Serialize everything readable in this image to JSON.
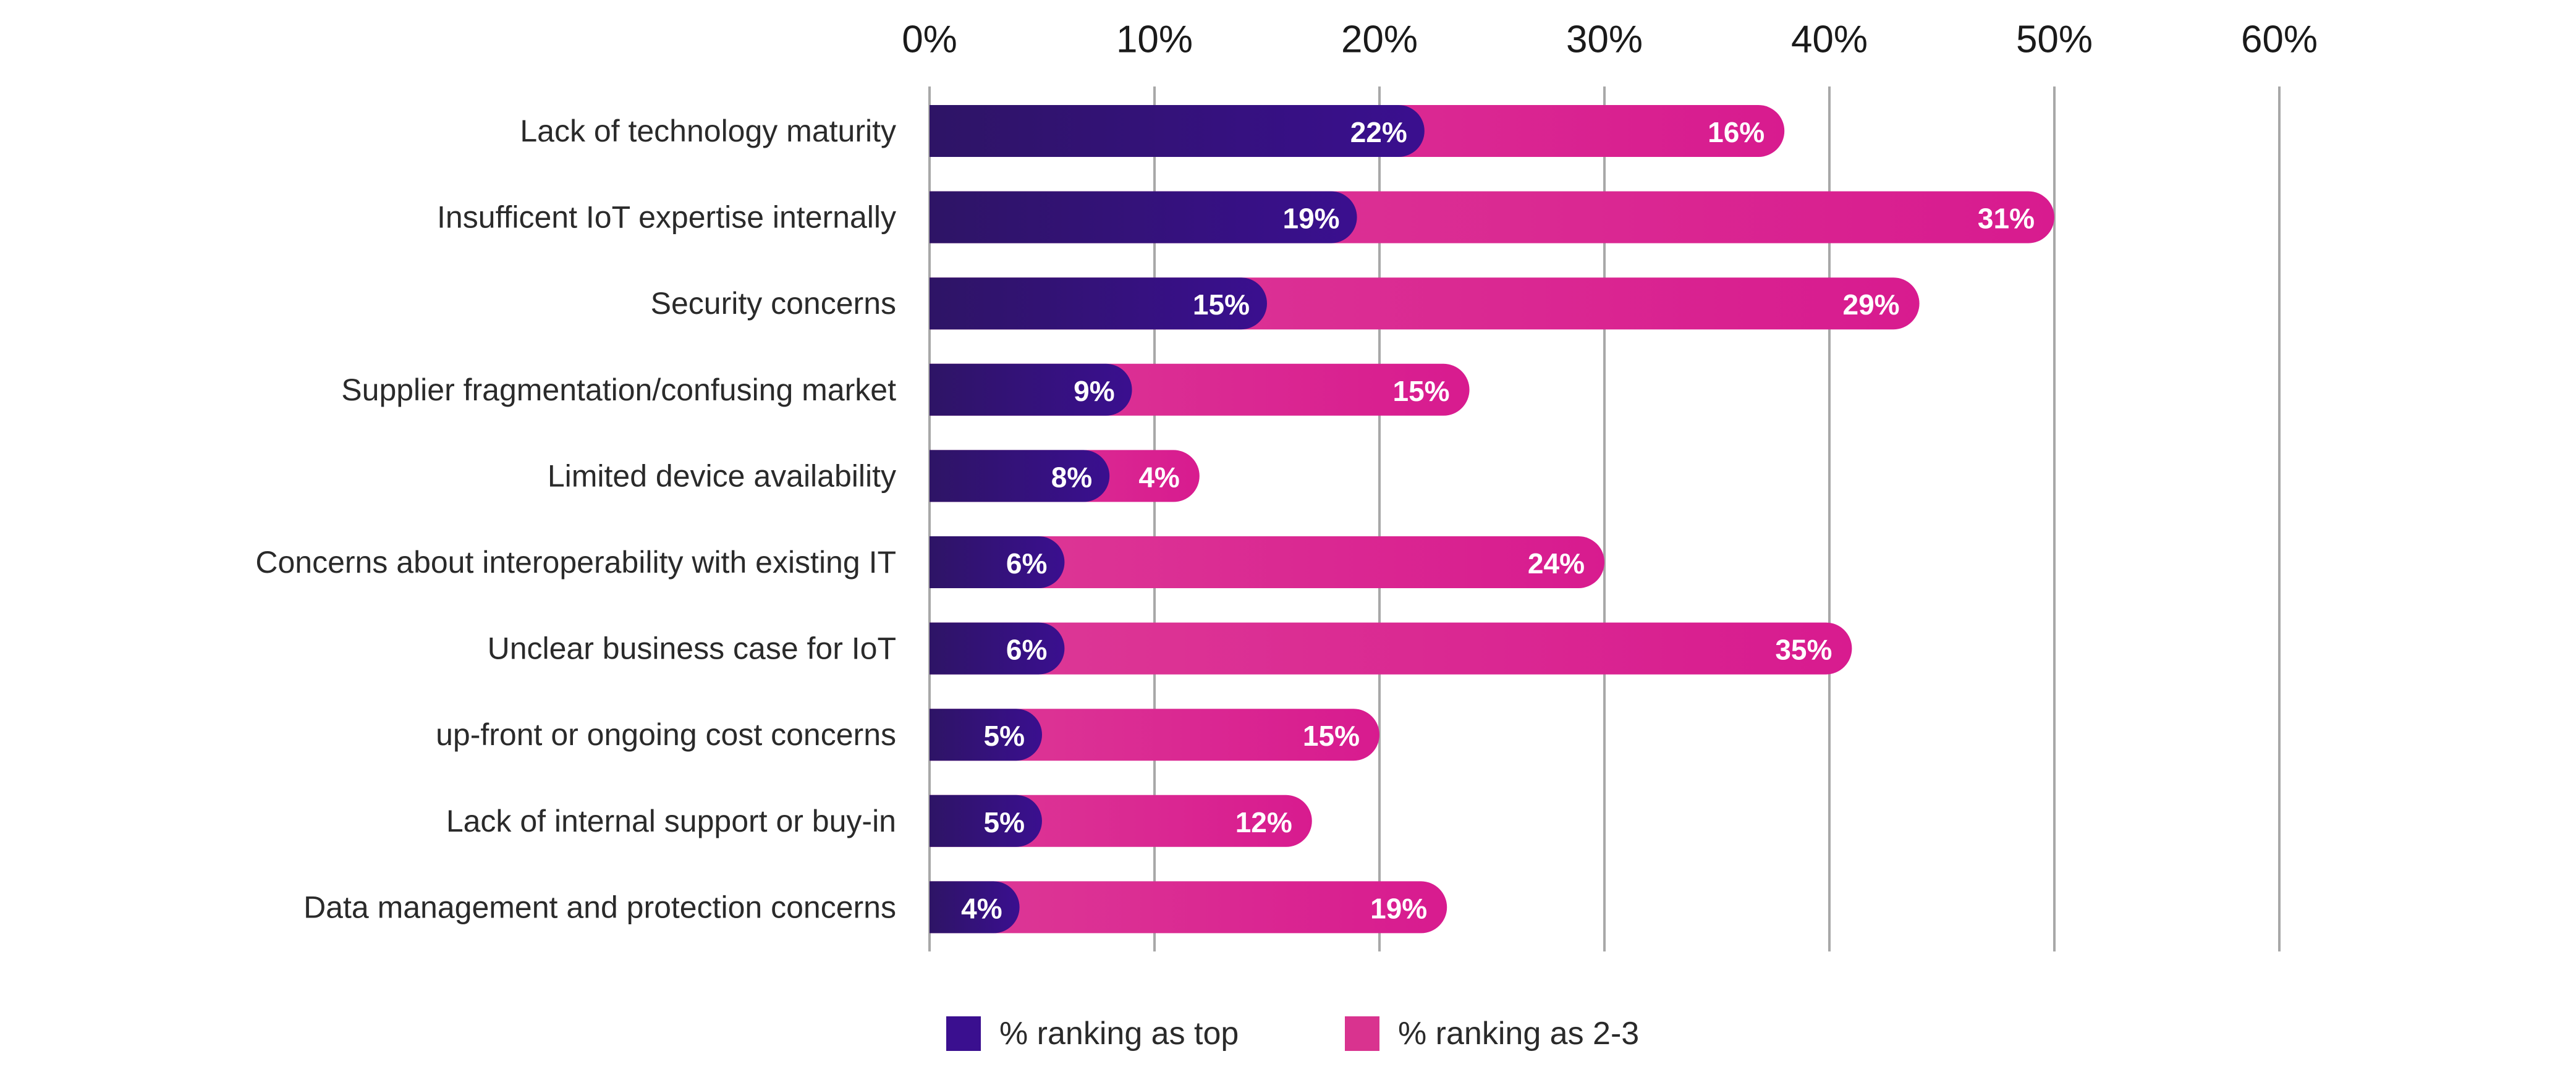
{
  "chart_data": {
    "type": "bar",
    "orientation": "horizontal",
    "stacked": true,
    "categories": [
      "Lack of technology maturity",
      "Insufficent IoT expertise internally",
      "Security concerns",
      "Supplier fragmentation/confusing market",
      "Limited device availability",
      "Concerns about interoperability with existing IT",
      "Unclear business case for IoT",
      "up-front or ongoing cost concerns",
      "Lack of internal support or buy-in",
      "Data management and protection concerns"
    ],
    "series": [
      {
        "name": "% ranking as top",
        "values": [
          22,
          19,
          15,
          9,
          8,
          6,
          6,
          5,
          5,
          4
        ],
        "labels": [
          "22%",
          "19%",
          "15%",
          "9%",
          "8%",
          "6%",
          "6%",
          "5%",
          "5%",
          "4%"
        ],
        "color": "#3a0f8f",
        "gradient_from": "#2e1466"
      },
      {
        "name": "% ranking as 2-3",
        "values": [
          16,
          31,
          29,
          15,
          4,
          24,
          35,
          15,
          12,
          19
        ],
        "labels": [
          "16%",
          "31%",
          "29%",
          "15%",
          "4%",
          "24%",
          "35%",
          "15%",
          "12%",
          "19%"
        ],
        "color": "#d81b8f",
        "gradient_from": "#dd3a96"
      }
    ],
    "xlim": [
      0,
      60
    ],
    "xticks": [
      0,
      10,
      20,
      30,
      40,
      50,
      60
    ],
    "xtick_labels": [
      "0%",
      "10%",
      "20%",
      "30%",
      "40%",
      "50%",
      "60%"
    ],
    "x_axis_position": "top",
    "grid": true,
    "legend_position": "bottom",
    "title": "",
    "xlabel": "",
    "ylabel": ""
  }
}
